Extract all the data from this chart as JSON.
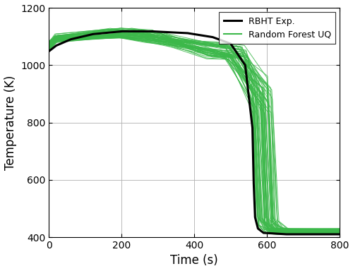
{
  "title": "",
  "xlabel": "Time (s)",
  "ylabel": "Temperature (K)",
  "xlim": [
    0,
    800
  ],
  "ylim": [
    400,
    1200
  ],
  "xticks": [
    0,
    200,
    400,
    600,
    800
  ],
  "yticks": [
    400,
    600,
    800,
    1000,
    1200
  ],
  "legend_labels": [
    "RBHT Exp.",
    "Random Forest UQ"
  ],
  "exp_color": "#000000",
  "rf_color": "#3cb84a",
  "exp_linewidth": 2.2,
  "rf_linewidth": 0.7,
  "rf_alpha": 0.85,
  "n_rf_lines": 60,
  "grid_color": "#b0b0b0",
  "background_color": "#ffffff",
  "seed": 42,
  "exp_t_pts": [
    0,
    20,
    60,
    120,
    200,
    280,
    380,
    450,
    500,
    540,
    560,
    563,
    567,
    575,
    590,
    650,
    800
  ],
  "exp_T_pts": [
    1048,
    1068,
    1090,
    1108,
    1118,
    1118,
    1112,
    1098,
    1075,
    1000,
    780,
    600,
    470,
    430,
    415,
    410,
    410
  ]
}
